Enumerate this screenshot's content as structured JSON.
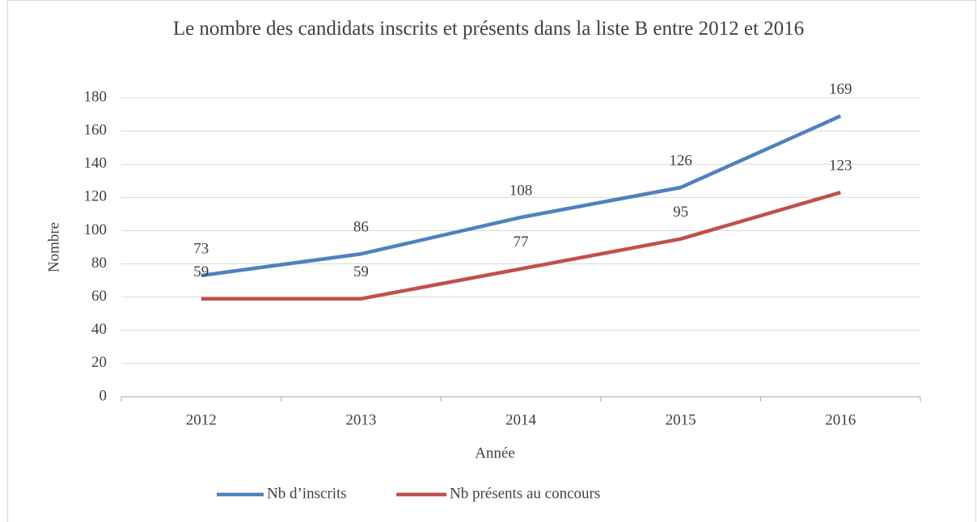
{
  "chart_data": {
    "type": "line",
    "title": "Le nombre des candidats inscrits et présents dans la liste B entre 2012 et 2016",
    "x_label": "Année",
    "y_label": "Nombre",
    "categories": [
      "2012",
      "2013",
      "2014",
      "2015",
      "2016"
    ],
    "series": [
      {
        "name": "Nb d’inscrits",
        "color": "#4f81bd",
        "values": [
          73,
          86,
          108,
          126,
          169
        ]
      },
      {
        "name": "Nb présents au concours",
        "color": "#c0504d",
        "values": [
          59,
          59,
          77,
          95,
          123
        ]
      }
    ],
    "ylim": [
      0,
      180
    ],
    "yticks": [
      0,
      20,
      40,
      60,
      80,
      100,
      120,
      140,
      160,
      180
    ],
    "grid": true,
    "legend": "bottom"
  }
}
